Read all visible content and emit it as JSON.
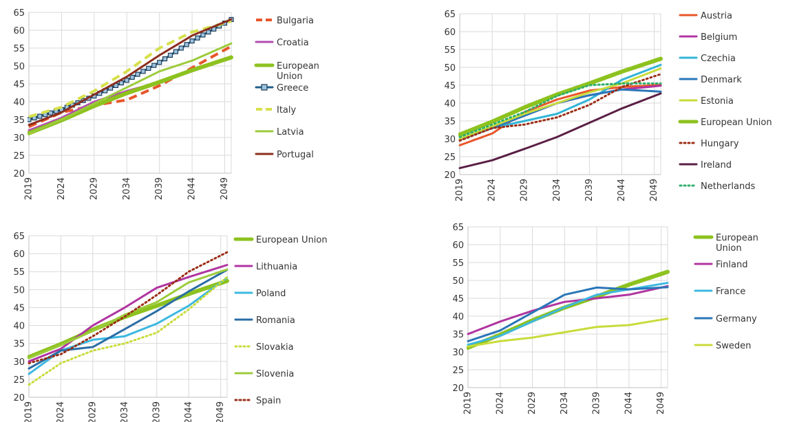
{
  "chart_data": [
    {
      "type": "line",
      "x": [
        2019,
        2024,
        2029,
        2034,
        2039,
        2044,
        2049
      ],
      "xlim": [
        2019,
        2050
      ],
      "ylim": [
        20,
        65
      ],
      "yticks": [
        20,
        25,
        30,
        35,
        40,
        45,
        50,
        55,
        60,
        65
      ],
      "xticks": [
        "2019",
        "2024",
        "2029",
        "2034",
        "2039",
        "2044",
        "2049"
      ],
      "grid": true,
      "legend_position": "right",
      "series": [
        {
          "name": "Bulgaria",
          "color": "#E8562A",
          "style": "dashed",
          "values": [
            33,
            37,
            39,
            40.5,
            44.5,
            49.5,
            54.5
          ]
        },
        {
          "name": "Croatia",
          "color": "#B34CB0",
          "style": "solid",
          "values": [
            32,
            35.5,
            40,
            43,
            45.5,
            48.5,
            52
          ]
        },
        {
          "name": "European Union",
          "color": "#8DC21F",
          "style": "thick",
          "values": [
            31.2,
            34.8,
            38.8,
            42.4,
            45.5,
            48.8,
            51.8
          ]
        },
        {
          "name": "Greece",
          "color": "#1F5F8B",
          "style": "marker",
          "values": [
            35,
            37.8,
            41.6,
            46,
            51,
            57,
            62
          ]
        },
        {
          "name": "Italy",
          "color": "#D6E04A",
          "style": "dashed",
          "values": [
            35.8,
            38.5,
            43,
            48.5,
            55,
            59.5,
            62
          ]
        },
        {
          "name": "Latvia",
          "color": "#9CCB3B",
          "style": "solid",
          "values": [
            31,
            35,
            39.5,
            44,
            48.5,
            51.5,
            55.5
          ]
        },
        {
          "name": "Portugal",
          "color": "#8B2E1E",
          "style": "solid",
          "values": [
            33.5,
            37,
            42,
            47,
            53,
            58.5,
            62.3
          ]
        }
      ]
    },
    {
      "type": "line",
      "x": [
        2019,
        2024,
        2029,
        2034,
        2039,
        2044,
        2049
      ],
      "xlim": [
        2019,
        2050
      ],
      "ylim": [
        20,
        65
      ],
      "yticks": [
        20,
        25,
        30,
        35,
        40,
        45,
        50,
        55,
        60,
        65
      ],
      "xticks": [
        "2019",
        "2024",
        "2029",
        "2034",
        "2039",
        "2044",
        "2049"
      ],
      "grid": true,
      "legend_position": "right",
      "series": [
        {
          "name": "Austria",
          "color": "#E8562A",
          "style": "solid",
          "values": [
            28.2,
            31.5,
            37.5,
            41,
            43.5,
            44.5,
            45
          ]
        },
        {
          "name": "Belgium",
          "color": "#B034A0",
          "style": "solid",
          "values": [
            29.8,
            33,
            36.5,
            40,
            42.2,
            43.8,
            44.7
          ]
        },
        {
          "name": "Czechia",
          "color": "#31B4D6",
          "style": "solid",
          "values": [
            30,
            33,
            35,
            37,
            41,
            46.5,
            50
          ]
        },
        {
          "name": "Denmark",
          "color": "#2A76B8",
          "style": "solid",
          "values": [
            30,
            33,
            36.5,
            40,
            42.2,
            43.8,
            43.3
          ]
        },
        {
          "name": "Estonia",
          "color": "#C9DB3A",
          "style": "solid",
          "values": [
            30,
            33.5,
            37,
            40,
            43,
            45.5,
            49
          ]
        },
        {
          "name": "European Union",
          "color": "#8DC21F",
          "style": "thick",
          "values": [
            31.2,
            34.8,
            38.8,
            42.4,
            45.5,
            48.8,
            51.8
          ]
        },
        {
          "name": "Hungary",
          "color": "#9B2D14",
          "style": "dotted",
          "values": [
            29.5,
            33,
            34,
            36,
            39.5,
            44.5,
            47.5
          ]
        },
        {
          "name": "Ireland",
          "color": "#5A1F45",
          "style": "solid",
          "values": [
            21.8,
            24,
            27.2,
            30.5,
            34.5,
            38.5,
            42
          ]
        },
        {
          "name": "Netherlands",
          "color": "#2DB06A",
          "style": "dotted",
          "values": [
            30.5,
            34,
            37.5,
            42,
            45,
            45.5,
            45.5
          ]
        }
      ]
    },
    {
      "type": "line",
      "x": [
        2019,
        2024,
        2029,
        2034,
        2039,
        2044,
        2049
      ],
      "xlim": [
        2019,
        2050
      ],
      "ylim": [
        20,
        65
      ],
      "yticks": [
        20,
        25,
        30,
        35,
        40,
        45,
        50,
        55,
        60,
        65
      ],
      "xticks": [
        "2019",
        "2024",
        "2029",
        "2034",
        "2039",
        "2044",
        "2049"
      ],
      "grid": true,
      "legend_position": "right",
      "series": [
        {
          "name": "European Union",
          "color": "#8DC21F",
          "style": "thick",
          "values": [
            31.2,
            34.8,
            38.8,
            42.4,
            45.5,
            48.8,
            51.8
          ]
        },
        {
          "name": "Lithuania",
          "color": "#B034A0",
          "style": "solid",
          "values": [
            30,
            33.5,
            40,
            45,
            50.5,
            53.5,
            56.3
          ]
        },
        {
          "name": "Poland",
          "color": "#3DB8E0",
          "style": "solid",
          "values": [
            26.5,
            33,
            36,
            37,
            40.5,
            45.5,
            52
          ]
        },
        {
          "name": "Romania",
          "color": "#2A6EA6",
          "style": "solid",
          "values": [
            28,
            33,
            34,
            39,
            44,
            49.5,
            54.5
          ]
        },
        {
          "name": "Slovakia",
          "color": "#C9DB3A",
          "style": "dotted",
          "values": [
            23.5,
            29.5,
            33,
            35,
            38,
            44.5,
            52
          ]
        },
        {
          "name": "Slovenia",
          "color": "#9CCB3B",
          "style": "solid",
          "values": [
            31,
            34.5,
            38.5,
            43,
            46.5,
            52,
            55
          ]
        },
        {
          "name": "Spain",
          "color": "#9B2D14",
          "style": "dotted",
          "values": [
            29.5,
            32,
            37,
            42.5,
            48.5,
            55,
            59.5
          ]
        }
      ]
    },
    {
      "type": "line",
      "x": [
        2019,
        2024,
        2029,
        2034,
        2039,
        2044,
        2049
      ],
      "xlim": [
        2019,
        2050
      ],
      "ylim": [
        20,
        65
      ],
      "yticks": [
        20,
        25,
        30,
        35,
        40,
        45,
        50,
        55,
        60,
        65
      ],
      "xticks": [
        "2019",
        "2024",
        "2029",
        "2034",
        "2039",
        "2044",
        "2049"
      ],
      "grid": true,
      "legend_position": "right",
      "series": [
        {
          "name": "European Union",
          "color": "#8DC21F",
          "style": "thick",
          "values": [
            31.2,
            34.8,
            38.8,
            42.4,
            45.5,
            48.8,
            51.8
          ]
        },
        {
          "name": "Finland",
          "color": "#B034A0",
          "style": "solid",
          "values": [
            35,
            38.5,
            41.5,
            44,
            45,
            46,
            48
          ]
        },
        {
          "name": "France",
          "color": "#3DB8E0",
          "style": "solid",
          "values": [
            32,
            34.5,
            38.5,
            42.5,
            46,
            47.5,
            49
          ]
        },
        {
          "name": "Germany",
          "color": "#2A76B8",
          "style": "solid",
          "values": [
            33,
            36,
            41,
            46,
            48,
            47.5,
            48
          ]
        },
        {
          "name": "Sweden",
          "color": "#C9DB3A",
          "style": "solid",
          "values": [
            31.5,
            33,
            34,
            35.5,
            37,
            37.5,
            39
          ]
        }
      ]
    }
  ]
}
